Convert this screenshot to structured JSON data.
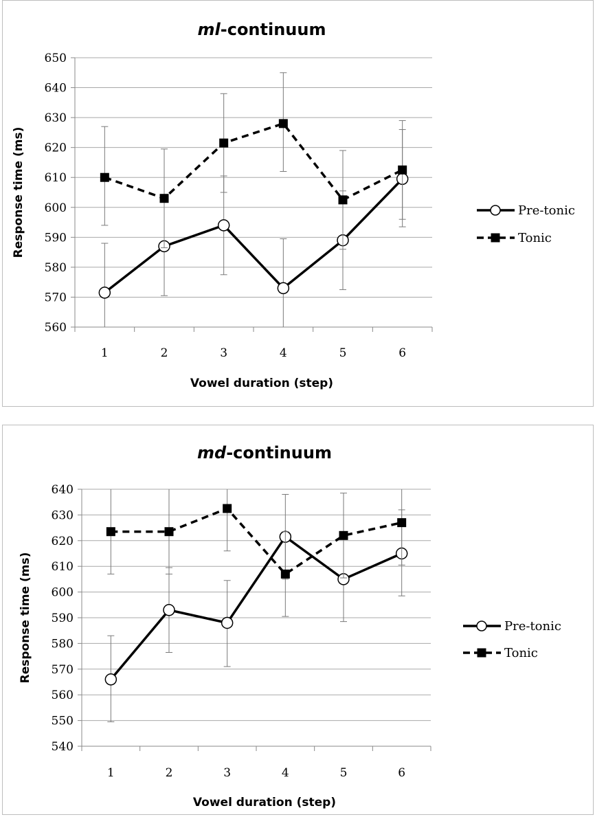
{
  "chart_data": [
    {
      "type": "line",
      "title": "ml-continuum",
      "title_italic_part": "ml",
      "title_rest": "-continuum",
      "xlabel": "Vowel duration (step)",
      "ylabel": "Response time (ms)",
      "categories": [
        "1",
        "2",
        "3",
        "4",
        "5",
        "6"
      ],
      "ylim": [
        560,
        650
      ],
      "yticks": [
        560,
        570,
        580,
        590,
        600,
        610,
        620,
        630,
        640,
        650
      ],
      "grid": true,
      "legend": "right",
      "series": [
        {
          "name": "Pre-tonic",
          "style": "solid",
          "marker": "open-circle",
          "values": [
            571.5,
            587,
            594,
            573,
            589,
            609.5
          ],
          "error_low": [
            560,
            570.5,
            577.5,
            560,
            572.5,
            593.5
          ],
          "error_high": [
            588,
            603,
            610.5,
            589.5,
            605.5,
            626
          ]
        },
        {
          "name": "Tonic",
          "style": "dashed",
          "marker": "filled-square",
          "values": [
            610,
            603,
            621.5,
            628,
            602.5,
            612.5
          ],
          "error_low": [
            594,
            586.5,
            605,
            612,
            586,
            596
          ],
          "error_high": [
            627,
            619.5,
            638,
            645,
            619,
            629
          ]
        }
      ]
    },
    {
      "type": "line",
      "title": "md-continuum",
      "title_italic_part": "md",
      "title_rest": "-continuum",
      "xlabel": "Vowel duration (step)",
      "ylabel": "Response time (ms)",
      "categories": [
        "1",
        "2",
        "3",
        "4",
        "5",
        "6"
      ],
      "ylim": [
        540,
        640
      ],
      "yticks": [
        540,
        550,
        560,
        570,
        580,
        590,
        600,
        610,
        620,
        630,
        640
      ],
      "grid": true,
      "legend": "right",
      "series": [
        {
          "name": "Pre-tonic",
          "style": "solid",
          "marker": "open-circle",
          "values": [
            566,
            593,
            588,
            621.5,
            605,
            615
          ],
          "error_low": [
            549.5,
            576.5,
            571,
            605,
            588.5,
            598.5
          ],
          "error_high": [
            583,
            609.5,
            604.5,
            638,
            621.5,
            632
          ]
        },
        {
          "name": "Tonic",
          "style": "dashed",
          "marker": "filled-square",
          "values": [
            623.5,
            623.5,
            632.5,
            607,
            622,
            627
          ],
          "error_low": [
            607,
            607,
            616,
            590.5,
            605.5,
            610.5
          ],
          "error_high": [
            640,
            640,
            640,
            623.5,
            638.5,
            640
          ]
        }
      ]
    }
  ]
}
